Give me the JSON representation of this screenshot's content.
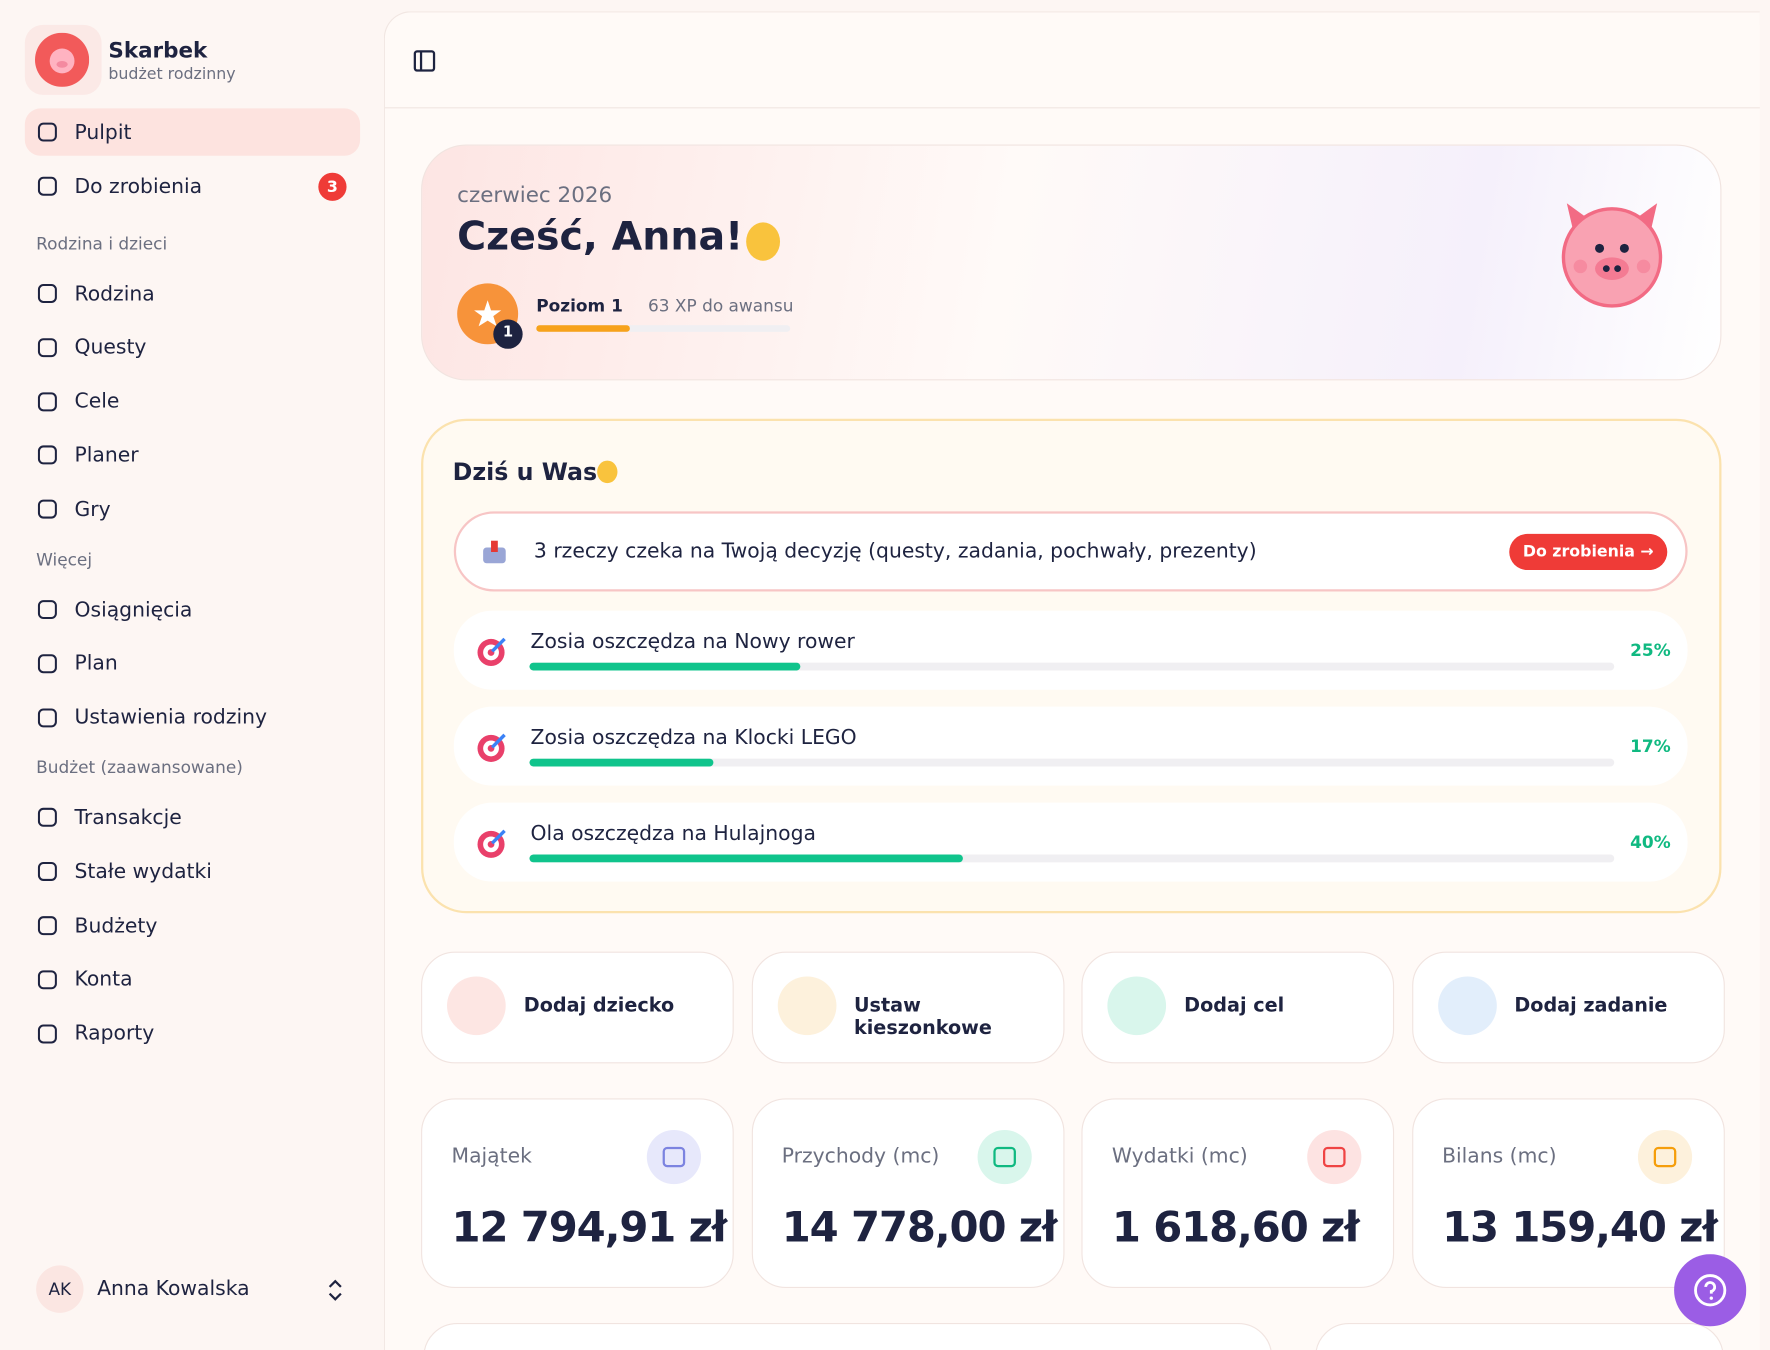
{
  "brand": {
    "name": "Skarbek",
    "tagline": "budżet rodzinny"
  },
  "nav": {
    "main": [
      {
        "label": "Pulpit"
      },
      {
        "label": "Do zrobienia",
        "badge": 3
      }
    ],
    "sections": [
      {
        "title": "Rodzina i dzieci",
        "items": [
          "Rodzina",
          "Questy",
          "Cele",
          "Planer",
          "Gry"
        ]
      },
      {
        "title": "Więcej",
        "items": [
          "Osiągnięcia",
          "Plan",
          "Ustawienia rodziny"
        ]
      },
      {
        "title": "Budżet (zaawansowane)",
        "items": [
          "Transakcje",
          "Stałe wydatki",
          "Budżety",
          "Konta",
          "Raporty"
        ]
      }
    ]
  },
  "user": {
    "initials": "AK",
    "name": "Anna Kowalska"
  },
  "hero": {
    "date": "czerwiec 2026",
    "greeting": "Cześć, Anna!",
    "level_number": 1,
    "level": "Poziom 1",
    "xp_left": "63 XP do awansu",
    "level_progress": 37
  },
  "today": {
    "title": "Dziś u Was",
    "alert": "3 rzeczy czeka na Twoją decyzję (questy, zadania, pochwały, prezenty)",
    "alert_button": "Do zrobienia →",
    "goals": [
      {
        "label": "Zosia oszczędza na Nowy rower",
        "progress": {
          "value": 25,
          "label": "25%"
        }
      },
      {
        "label": "Zosia oszczędza na Klocki LEGO",
        "progress": {
          "value": 17,
          "label": "17%"
        }
      },
      {
        "label": "Ola oszczędza na Hulajnoga",
        "progress": {
          "value": 40,
          "label": "40%"
        }
      }
    ]
  },
  "actions": [
    "Dodaj dziecko",
    "Ustaw kieszonkowe",
    "Dodaj cel",
    "Dodaj zadanie"
  ],
  "stats": [
    {
      "label": "Majątek",
      "value": "12 794,91 zł"
    },
    {
      "label": "Przychody (mc)",
      "value": "14 778,00 zł"
    },
    {
      "label": "Wydatki (mc)",
      "value": "1 618,60 zł"
    },
    {
      "label": "Bilans (mc)",
      "value": "13 159,40 zł"
    }
  ]
}
